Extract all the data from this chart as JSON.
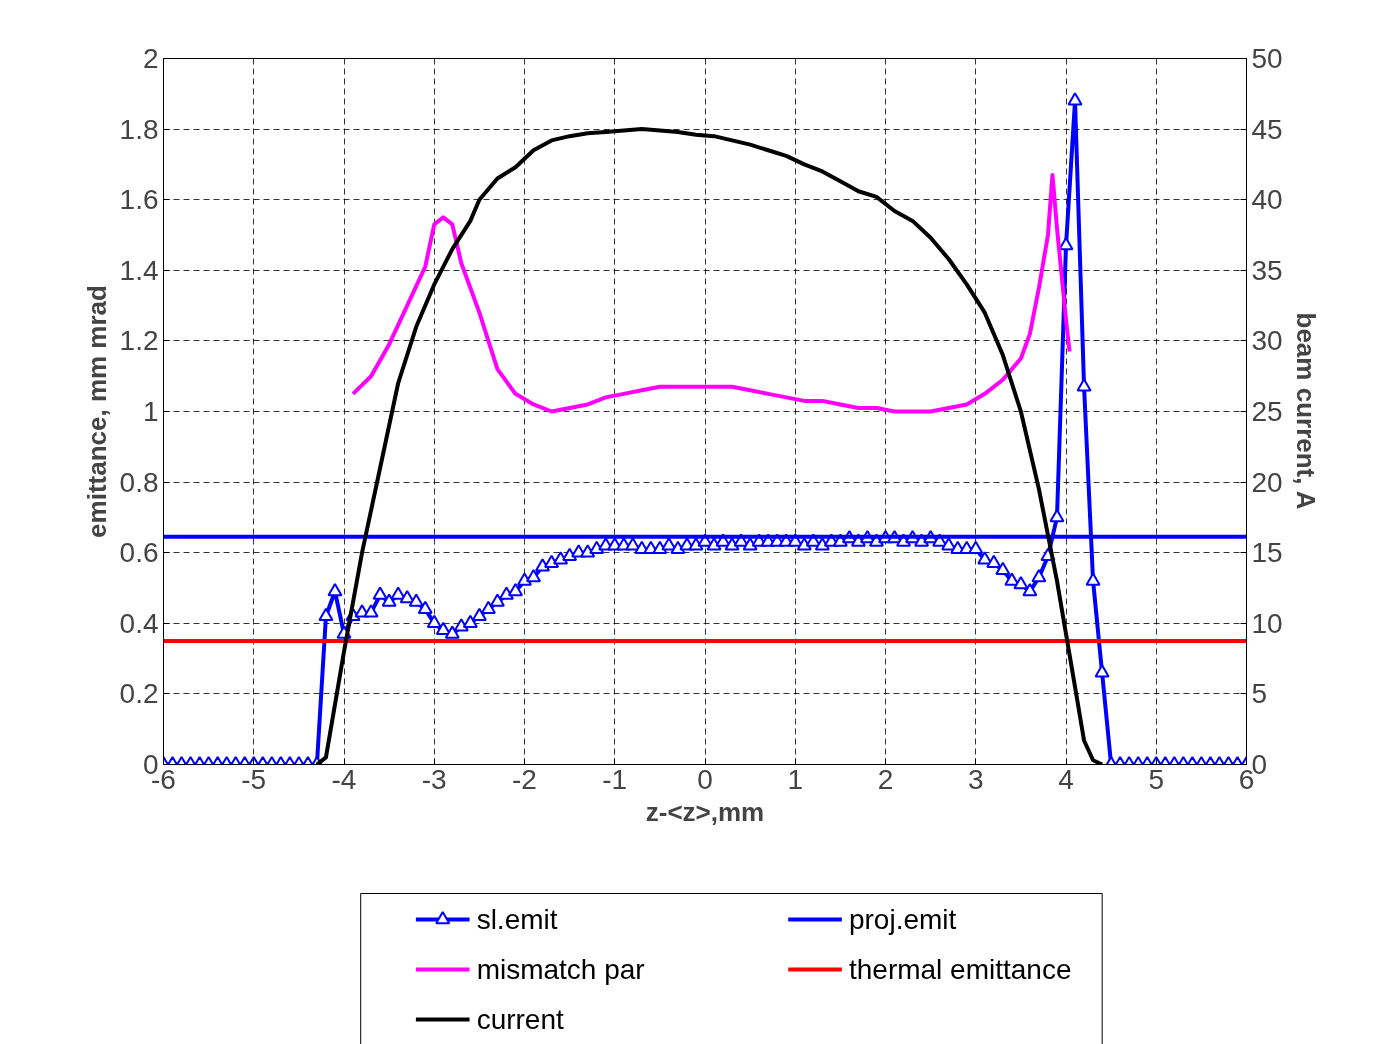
{
  "chart_data": {
    "type": "line",
    "xlabel": "z-<z>,mm",
    "ylabel": "emittance, mm mrad",
    "y2label": "beam current, A",
    "xlim": [
      -6,
      6
    ],
    "xticks": [
      -6,
      -5,
      -4,
      -3,
      -2,
      -1,
      0,
      1,
      2,
      3,
      4,
      5,
      6
    ],
    "ylim": [
      0,
      2
    ],
    "yticks": [
      0,
      0.2,
      0.4,
      0.6,
      0.8,
      1,
      1.2,
      1.4,
      1.6,
      1.8,
      2
    ],
    "y2lim": [
      0,
      50
    ],
    "y2ticks": [
      0,
      5,
      10,
      15,
      20,
      25,
      30,
      35,
      40,
      45,
      50
    ],
    "grid": true,
    "legend": "bottom",
    "line_style": "solid",
    "series": [
      {
        "name": "sl.emit",
        "color": "#0000ff",
        "marker": "triangle",
        "x": [
          -6,
          -5.9,
          -5.8,
          -5.7,
          -5.6,
          -5.5,
          -5.4,
          -5.3,
          -5.2,
          -5.1,
          -5,
          -4.9,
          -4.8,
          -4.7,
          -4.6,
          -4.5,
          -4.4,
          -4.3,
          -4.2,
          -4.1,
          -4,
          -3.9,
          -3.8,
          -3.7,
          -3.6,
          -3.5,
          -3.4,
          -3.3,
          -3.2,
          -3.1,
          -3,
          -2.9,
          -2.8,
          -2.7,
          -2.6,
          -2.5,
          -2.4,
          -2.3,
          -2.2,
          -2.1,
          -2,
          -1.9,
          -1.8,
          -1.7,
          -1.6,
          -1.5,
          -1.4,
          -1.3,
          -1.2,
          -1.1,
          -1,
          -0.9,
          -0.8,
          -0.7,
          -0.6,
          -0.5,
          -0.4,
          -0.3,
          -0.2,
          -0.1,
          0,
          0.1,
          0.2,
          0.3,
          0.4,
          0.5,
          0.6,
          0.7,
          0.8,
          0.9,
          1,
          1.1,
          1.2,
          1.3,
          1.4,
          1.5,
          1.6,
          1.7,
          1.8,
          1.9,
          2,
          2.1,
          2.2,
          2.3,
          2.4,
          2.5,
          2.6,
          2.7,
          2.8,
          2.9,
          3,
          3.1,
          3.2,
          3.3,
          3.4,
          3.5,
          3.6,
          3.7,
          3.8,
          3.9,
          4,
          4.1,
          4.2,
          4.3,
          4.4,
          4.5,
          4.6,
          4.7,
          4.8,
          4.9,
          5,
          5.1,
          5.2,
          5.3,
          5.4,
          5.5,
          5.6,
          5.7,
          5.8,
          5.9,
          6
        ],
        "values": [
          0,
          0,
          0,
          0,
          0,
          0,
          0,
          0,
          0,
          0,
          0,
          0,
          0,
          0,
          0,
          0,
          0,
          0,
          0.42,
          0.49,
          0.37,
          0.42,
          0.43,
          0.43,
          0.48,
          0.46,
          0.48,
          0.47,
          0.46,
          0.44,
          0.4,
          0.38,
          0.37,
          0.39,
          0.4,
          0.42,
          0.44,
          0.46,
          0.48,
          0.49,
          0.52,
          0.53,
          0.56,
          0.57,
          0.58,
          0.59,
          0.6,
          0.6,
          0.61,
          0.62,
          0.62,
          0.62,
          0.62,
          0.61,
          0.61,
          0.61,
          0.62,
          0.61,
          0.62,
          0.62,
          0.63,
          0.62,
          0.63,
          0.62,
          0.63,
          0.62,
          0.63,
          0.63,
          0.63,
          0.63,
          0.63,
          0.62,
          0.63,
          0.62,
          0.63,
          0.63,
          0.64,
          0.63,
          0.64,
          0.63,
          0.64,
          0.64,
          0.63,
          0.64,
          0.63,
          0.64,
          0.63,
          0.62,
          0.61,
          0.61,
          0.61,
          0.58,
          0.57,
          0.55,
          0.52,
          0.51,
          0.49,
          0.53,
          0.59,
          0.7,
          1.47,
          1.88,
          1.07,
          0.52,
          0.26,
          0,
          0,
          0,
          0,
          0,
          0,
          0,
          0,
          0,
          0,
          0,
          0,
          0,
          0,
          0,
          0
        ]
      },
      {
        "name": "proj.emit",
        "color": "#0000ff",
        "x": [
          -6,
          6
        ],
        "values": [
          0.645,
          0.645
        ]
      },
      {
        "name": "mismatch par",
        "color": "#ff00ff",
        "x": [
          -3.9,
          -3.7,
          -3.5,
          -3.3,
          -3.1,
          -3,
          -2.9,
          -2.8,
          -2.7,
          -2.5,
          -2.3,
          -2.1,
          -1.9,
          -1.7,
          -1.5,
          -1.3,
          -1.1,
          -0.9,
          -0.7,
          -0.5,
          -0.3,
          -0.1,
          0.1,
          0.3,
          0.5,
          0.7,
          0.9,
          1.1,
          1.3,
          1.5,
          1.7,
          1.9,
          2.1,
          2.3,
          2.5,
          2.7,
          2.9,
          3.1,
          3.3,
          3.5,
          3.6,
          3.7,
          3.8,
          3.85,
          3.9,
          4,
          4.04
        ],
        "values": [
          1.05,
          1.1,
          1.19,
          1.3,
          1.41,
          1.53,
          1.55,
          1.53,
          1.42,
          1.28,
          1.12,
          1.05,
          1.02,
          1.0,
          1.01,
          1.02,
          1.04,
          1.05,
          1.06,
          1.07,
          1.07,
          1.07,
          1.07,
          1.07,
          1.06,
          1.05,
          1.04,
          1.03,
          1.03,
          1.02,
          1.01,
          1.01,
          1.0,
          1.0,
          1.0,
          1.01,
          1.02,
          1.05,
          1.09,
          1.15,
          1.22,
          1.35,
          1.5,
          1.67,
          1.52,
          1.26,
          1.17
        ]
      },
      {
        "name": "thermal emittance",
        "color": "#ff0000",
        "x": [
          -6,
          6
        ],
        "values": [
          0.35,
          0.35
        ]
      },
      {
        "name": "current",
        "color": "#000000",
        "axis": "y2",
        "x": [
          -4.3,
          -4.2,
          -4,
          -3.8,
          -3.6,
          -3.4,
          -3.2,
          -3,
          -2.8,
          -2.6,
          -2.5,
          -2.3,
          -2.1,
          -1.9,
          -1.7,
          -1.5,
          -1.3,
          -1.1,
          -0.9,
          -0.7,
          -0.5,
          -0.3,
          -0.1,
          0.1,
          0.3,
          0.5,
          0.7,
          0.9,
          1.1,
          1.3,
          1.5,
          1.7,
          1.9,
          2.1,
          2.3,
          2.5,
          2.7,
          2.9,
          3.1,
          3.3,
          3.5,
          3.7,
          3.9,
          4.1,
          4.2,
          4.3,
          4.4
        ],
        "values": [
          0,
          0.5,
          8,
          15,
          21,
          27,
          31,
          34,
          36.5,
          38.5,
          40,
          41.5,
          42.3,
          43.5,
          44.2,
          44.5,
          44.7,
          44.8,
          44.9,
          45,
          44.9,
          44.8,
          44.6,
          44.5,
          44.2,
          43.9,
          43.5,
          43.1,
          42.5,
          42,
          41.3,
          40.6,
          40.2,
          39.2,
          38.5,
          37.3,
          35.8,
          34,
          32,
          29,
          25,
          19.5,
          13,
          5.5,
          1.7,
          0.3,
          0
        ]
      }
    ]
  }
}
